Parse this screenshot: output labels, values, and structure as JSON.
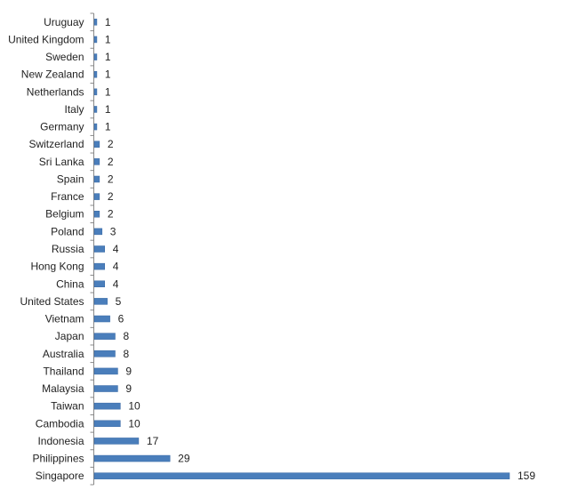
{
  "chart_data": {
    "type": "bar",
    "orientation": "horizontal",
    "title": "",
    "xlabel": "",
    "ylabel": "",
    "grid": false,
    "legend": "none",
    "xlim": [
      0,
      159
    ],
    "bar_color": "#4a7ebb",
    "categories": [
      "Uruguay",
      "United Kingdom",
      "Sweden",
      "New Zealand",
      "Netherlands",
      "Italy",
      "Germany",
      "Switzerland",
      "Sri Lanka",
      "Spain",
      "France",
      "Belgium",
      "Poland",
      "Russia",
      "Hong Kong",
      "China",
      "United States",
      "Vietnam",
      "Japan",
      "Australia",
      "Thailand",
      "Malaysia",
      "Taiwan",
      "Cambodia",
      "Indonesia",
      "Philippines",
      "Singapore"
    ],
    "values": [
      1,
      1,
      1,
      1,
      1,
      1,
      1,
      2,
      2,
      2,
      2,
      2,
      3,
      4,
      4,
      4,
      5,
      6,
      8,
      8,
      9,
      9,
      10,
      10,
      17,
      29,
      159
    ],
    "data_labels": [
      "1",
      "1",
      "1",
      "1",
      "1",
      "1",
      "1",
      "2",
      "2",
      "2",
      "2",
      "2",
      "3",
      "4",
      "4",
      "4",
      "5",
      "6",
      "8",
      "8",
      "9",
      "9",
      "10",
      "10",
      "17",
      "29",
      "159"
    ]
  }
}
